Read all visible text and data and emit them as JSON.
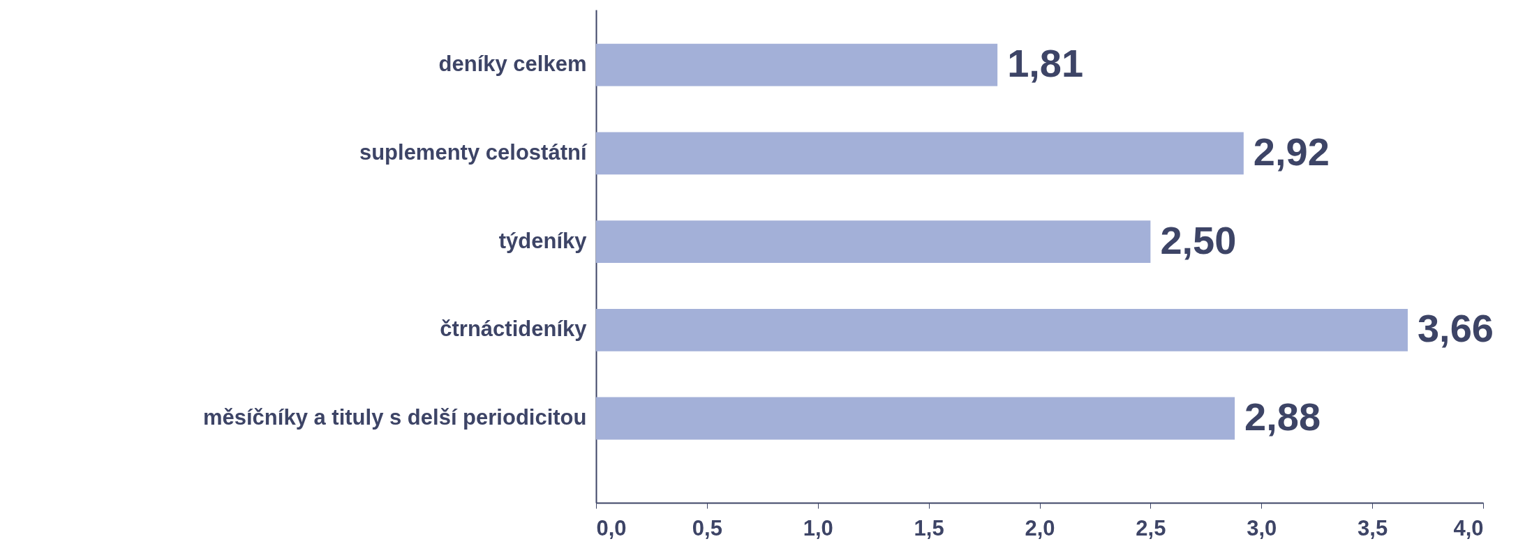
{
  "chart_data": {
    "type": "bar",
    "orientation": "horizontal",
    "categories": [
      "deníky celkem",
      "suplementy celostátní",
      "týdeníky",
      "čtrnáctideníky",
      "měsíčníky a tituly s delší periodicitou"
    ],
    "values": [
      1.81,
      2.92,
      2.5,
      3.66,
      2.88
    ],
    "value_labels": [
      "1,81",
      "2,92",
      "2,50",
      "3,66",
      "2,88"
    ],
    "color": "#a3b0d8",
    "xlim": [
      0,
      4
    ],
    "xticks": [
      {
        "value": 0,
        "label": "0,0"
      },
      {
        "value": 0.5,
        "label": "0,5"
      },
      {
        "value": 1,
        "label": "1,0"
      },
      {
        "value": 1.5,
        "label": "1,5"
      },
      {
        "value": 2,
        "label": "2,0"
      },
      {
        "value": 2.5,
        "label": "2,5"
      },
      {
        "value": 3,
        "label": "3,0"
      },
      {
        "value": 3.5,
        "label": "3,5"
      },
      {
        "value": 4,
        "label": "4,0"
      }
    ]
  }
}
